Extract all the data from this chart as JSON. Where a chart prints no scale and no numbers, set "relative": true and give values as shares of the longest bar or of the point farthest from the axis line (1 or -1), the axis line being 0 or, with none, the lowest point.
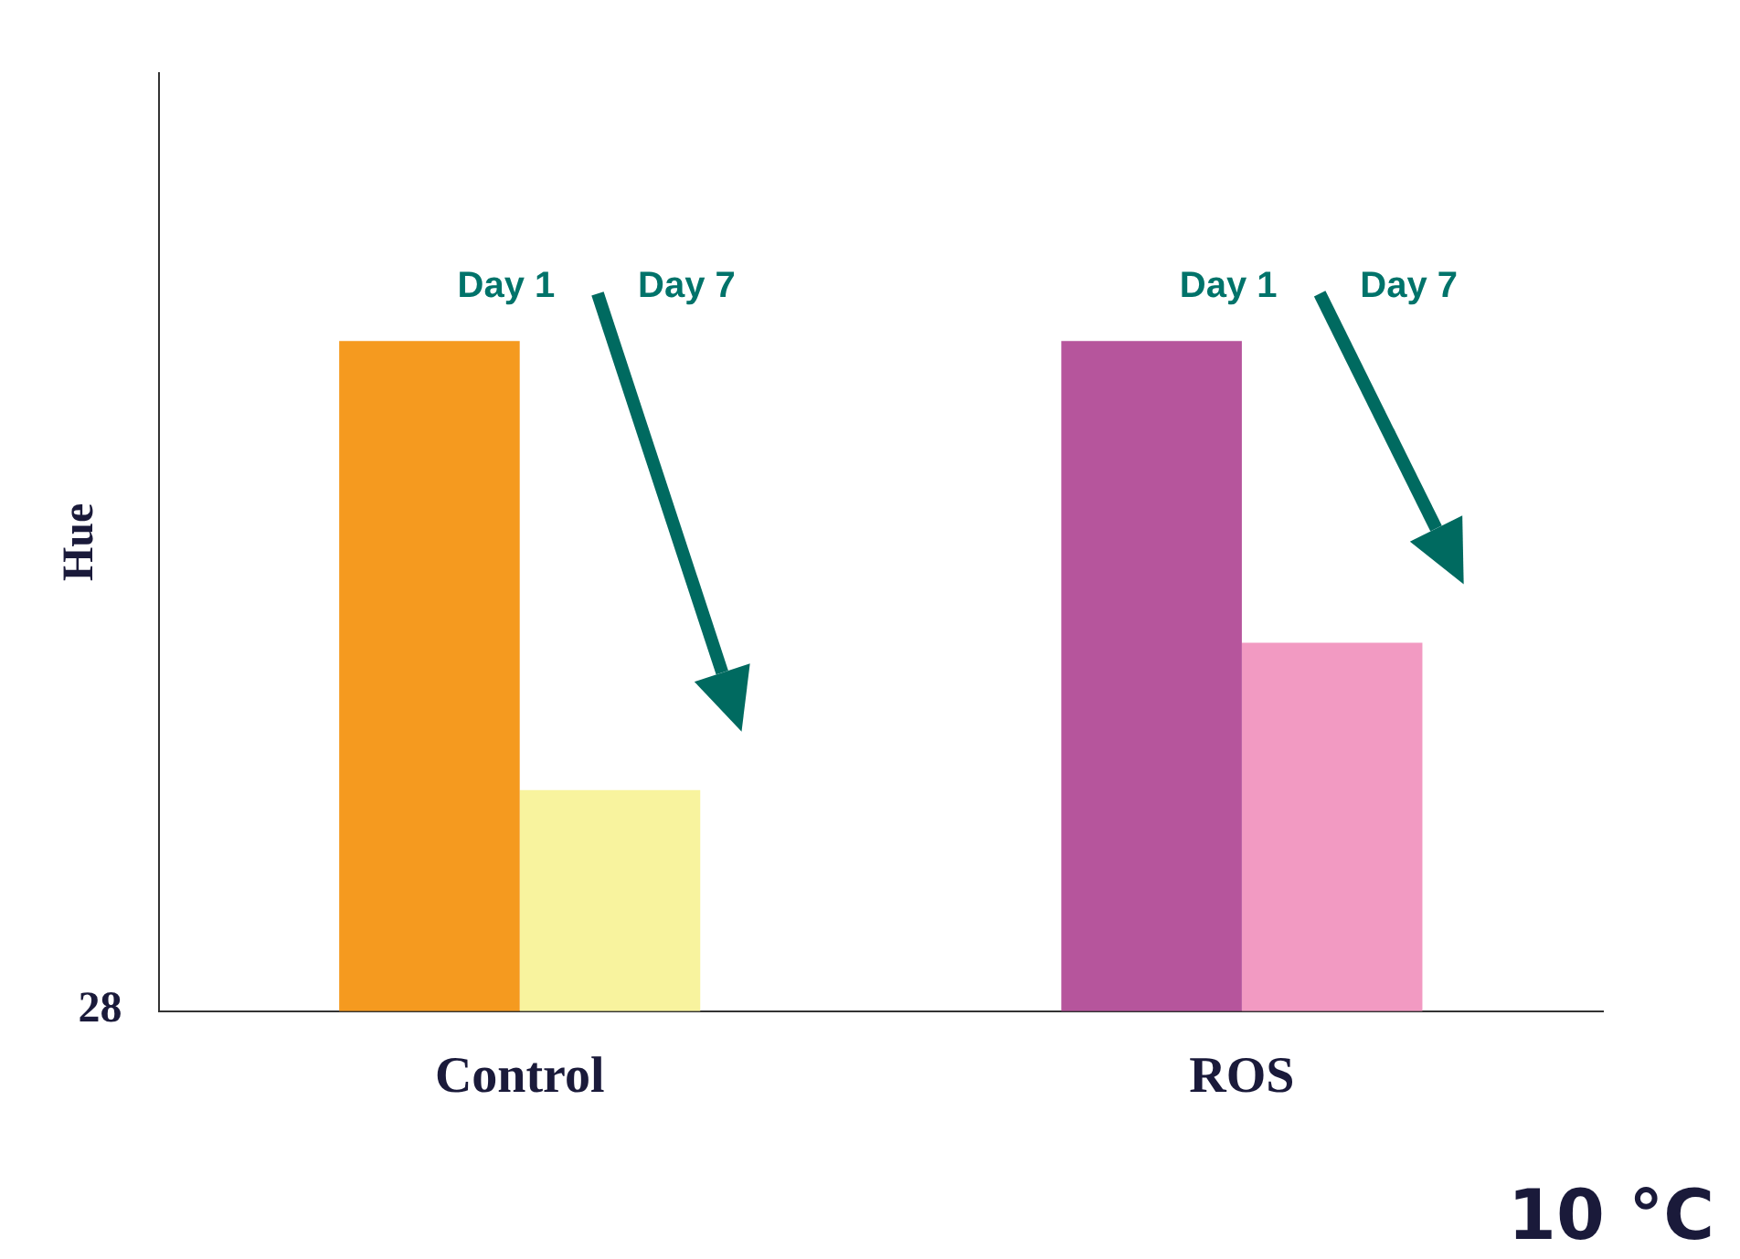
{
  "chart_data": {
    "type": "bar",
    "relative": true,
    "ylabel": "Hue",
    "categories": [
      "Control",
      "ROS"
    ],
    "series": [
      {
        "name": "Day 1",
        "colors": [
          "#f59a1f",
          "#b6559c"
        ],
        "values": [
          1,
          1
        ]
      },
      {
        "name": "Day 7",
        "colors": [
          "#f8f39e",
          "#f29ac2"
        ],
        "values": [
          0.33,
          0.55
        ]
      }
    ],
    "annotations": [
      "28",
      "10 °C"
    ],
    "legend": false,
    "grid": false
  }
}
